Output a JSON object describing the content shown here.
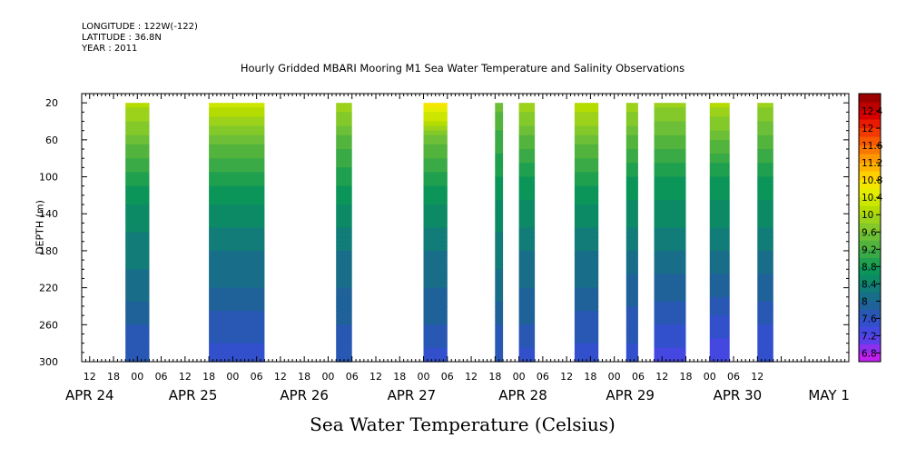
{
  "header": {
    "longitude": "LONGITUDE : 122W(-122)",
    "latitude": "LATITUDE : 36.8N",
    "year": "YEAR : 2011"
  },
  "chart_data": {
    "type": "heatmap",
    "title": "Hourly Gridded MBARI Mooring M1 Sea Water Temperature and Salinity Observations",
    "subtitle": "Sea Water Temperature (Celsius)",
    "ylabel": "DEPTH (m)",
    "xlabel": "",
    "y_axis": {
      "range": [
        300,
        10
      ],
      "inverted": true,
      "tick_values": [
        20,
        60,
        100,
        140,
        180,
        220,
        260,
        300
      ],
      "tick_labels": [
        "20",
        "60",
        "100",
        "140",
        "180",
        "220",
        "260",
        "300"
      ]
    },
    "x_axis": {
      "unit": "hours since APR 24 00:00, 2011",
      "range": [
        10,
        203
      ],
      "hour_tick_labels": [
        "12",
        "18",
        "00",
        "06",
        "12",
        "18",
        "00",
        "06",
        "12",
        "18",
        "00",
        "06",
        "12",
        "18",
        "00",
        "06",
        "12",
        "18",
        "00",
        "06",
        "12",
        "18",
        "00",
        "06",
        "12",
        "18",
        "00",
        "06",
        "12"
      ],
      "day_labels": [
        {
          "label": "APR 24",
          "hour": 12
        },
        {
          "label": "APR 25",
          "hour": 38
        },
        {
          "label": "APR 26",
          "hour": 66
        },
        {
          "label": "APR 27",
          "hour": 93
        },
        {
          "label": "APR 28",
          "hour": 121
        },
        {
          "label": "APR 29",
          "hour": 148
        },
        {
          "label": "APR 30",
          "hour": 175
        },
        {
          "label": "MAY  1",
          "hour": 198
        }
      ]
    },
    "colorbar": {
      "labels": [
        "12.4",
        "12",
        "11.6",
        "11.2",
        "10.8",
        "10.4",
        "10",
        "9.6",
        "9.2",
        "8.8",
        "8.4",
        "8",
        "7.6",
        "7.2",
        "6.8"
      ],
      "levels": [
        12.6,
        12.4,
        12.2,
        12.0,
        11.8,
        11.6,
        11.4,
        11.2,
        11.0,
        10.8,
        10.6,
        10.4,
        10.2,
        10.0,
        9.8,
        9.6,
        9.4,
        9.2,
        9.0,
        8.8,
        8.6,
        8.4,
        8.2,
        8.0,
        7.8,
        7.6,
        7.4,
        7.2,
        7.0,
        6.8,
        6.6
      ],
      "colors": [
        "#9b0000",
        "#bb0000",
        "#d60000",
        "#ea1a00",
        "#f23a00",
        "#f75800",
        "#fb7800",
        "#fd9700",
        "#ffb400",
        "#ffd000",
        "#f5e600",
        "#e4ed00",
        "#cde600",
        "#b4dc00",
        "#9cd21a",
        "#84c92a",
        "#6cbf36",
        "#52b43c",
        "#3aaa46",
        "#1ea04e",
        "#0b9558",
        "#0c8a66",
        "#117c78",
        "#186e88",
        "#1f6299",
        "#2858b4",
        "#3350cc",
        "#4448e0",
        "#5b40ea",
        "#8c30ee",
        "#c020f0"
      ]
    },
    "depth_levels": [
      20,
      60,
      100,
      140,
      180,
      220,
      260,
      300
    ],
    "series": [
      {
        "start_hour": 21,
        "end_hour": 27,
        "temperature_at_depths": [
          9.9,
          9.3,
          8.7,
          8.3,
          8.1,
          7.9,
          7.6,
          7.4
        ]
      },
      {
        "start_hour": 42,
        "end_hour": 56,
        "temperature_at_depths": [
          10.1,
          9.3,
          8.7,
          8.3,
          8.0,
          7.8,
          7.5,
          7.3
        ]
      },
      {
        "start_hour": 74,
        "end_hour": 78,
        "temperature_at_depths": [
          9.8,
          9.1,
          8.7,
          8.3,
          8.0,
          7.8,
          7.6,
          7.4
        ]
      },
      {
        "start_hour": 96,
        "end_hour": 102,
        "temperature_at_depths": [
          10.6,
          9.3,
          8.7,
          8.3,
          8.0,
          7.8,
          7.6,
          7.3
        ]
      },
      {
        "start_hour": 114,
        "end_hour": 116,
        "temperature_at_depths": [
          9.3,
          8.9,
          8.6,
          8.3,
          8.1,
          7.9,
          7.6,
          7.4
        ]
      },
      {
        "start_hour": 120,
        "end_hour": 124,
        "temperature_at_depths": [
          9.8,
          9.1,
          8.6,
          8.3,
          8.0,
          7.8,
          7.6,
          7.3
        ]
      },
      {
        "start_hour": 134,
        "end_hour": 140,
        "temperature_at_depths": [
          10.0,
          9.3,
          8.7,
          8.3,
          8.0,
          7.8,
          7.5,
          7.3
        ]
      },
      {
        "start_hour": 147,
        "end_hour": 150,
        "temperature_at_depths": [
          9.8,
          9.1,
          8.6,
          8.3,
          8.0,
          7.7,
          7.5,
          7.3
        ]
      },
      {
        "start_hour": 154,
        "end_hour": 162,
        "temperature_at_depths": [
          9.7,
          9.1,
          8.6,
          8.3,
          8.0,
          7.7,
          7.4,
          7.1
        ]
      },
      {
        "start_hour": 168,
        "end_hour": 173,
        "temperature_at_depths": [
          9.9,
          9.2,
          8.6,
          8.3,
          8.0,
          7.7,
          7.3,
          7.0
        ]
      },
      {
        "start_hour": 180,
        "end_hour": 184,
        "temperature_at_depths": [
          9.7,
          9.1,
          8.6,
          8.3,
          8.0,
          7.7,
          7.4,
          7.2
        ]
      }
    ],
    "grid": false,
    "legend": "right colorbar"
  }
}
